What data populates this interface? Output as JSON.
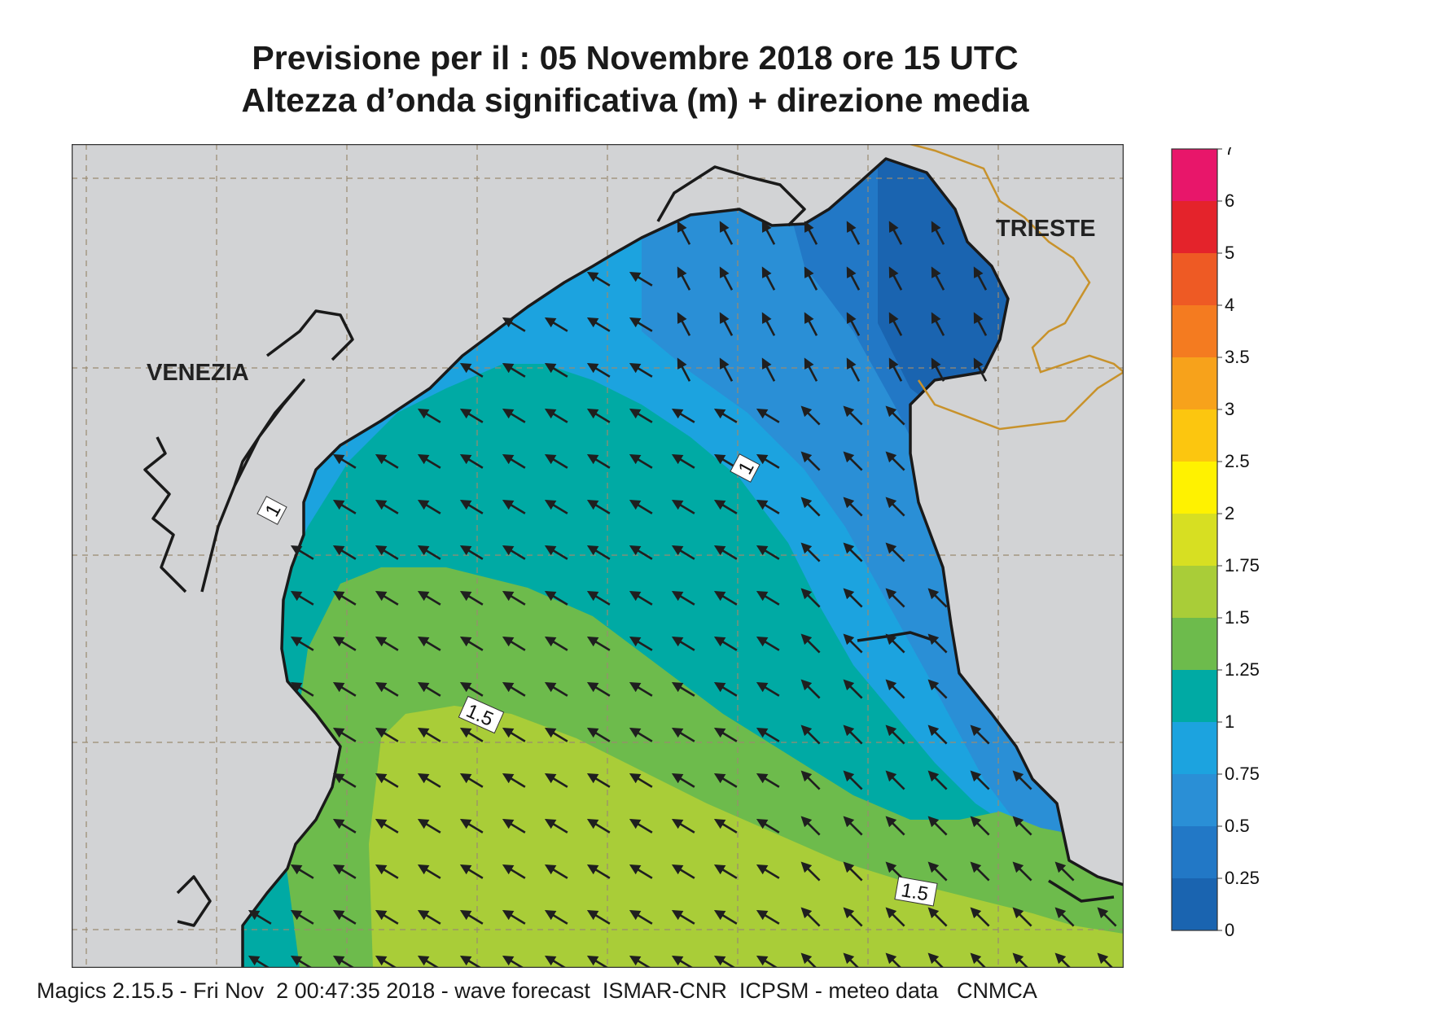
{
  "header": {
    "title_line1": "Previsione per il  :  05 Novembre  2018   ore 15 UTC",
    "title_line2": "Altezza d’onda significativa (m) + direzione media"
  },
  "map": {
    "cities": [
      {
        "id": "venezia",
        "label": "VENEZIA"
      },
      {
        "id": "trieste",
        "label": "TRIESTE"
      }
    ],
    "contour_labels": [
      "1",
      "1",
      "1.5",
      "1.5"
    ],
    "colors": {
      "land": "#d2d3d5",
      "sea_0_25": "#1a64b0",
      "sea_0_5": "#2278c6",
      "sea_0_75": "#2a8fd6",
      "sea_1": "#1ca3df",
      "sea_1_25": "#00aaa4",
      "sea_1_5": "#6dbb4c",
      "sea_1_75": "#a9cd38",
      "border": "#c8922b",
      "arrow": "#1f1f1f"
    },
    "mean_direction": "north-west"
  },
  "legend": {
    "ticks": [
      "7",
      "6",
      "5",
      "4",
      "3.5",
      "3",
      "2.5",
      "2",
      "1.75",
      "1.5",
      "1.25",
      "1",
      "0.75",
      "0.5",
      "0.25",
      "0"
    ],
    "colors": [
      "#e8166a",
      "#e4232b",
      "#ee5a24",
      "#f47b20",
      "#f7a21b",
      "#fcc60f",
      "#fff200",
      "#d7df22",
      "#a9cd38",
      "#6dbb4c",
      "#00aaa4",
      "#1ca3df",
      "#2a8fd6",
      "#2278c6",
      "#1a64b0"
    ]
  },
  "footer": {
    "text": "Magics 2.15.5 - Fri Nov  2 00:47:35 2018 - wave forecast  ISMAR-CNR  ICPSM - meteo data   CNMCA"
  }
}
